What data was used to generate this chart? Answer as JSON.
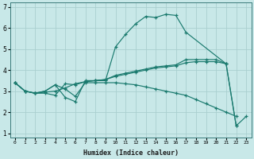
{
  "xlabel": "Humidex (Indice chaleur)",
  "color": "#1a7a6e",
  "bg_color": "#c8e8e8",
  "grid_color": "#aacfcf",
  "ylim": [
    0.8,
    7.2
  ],
  "xlim": [
    -0.5,
    23.5
  ],
  "yticks": [
    1,
    2,
    3,
    4,
    5,
    6,
    7
  ],
  "xticks": [
    0,
    1,
    2,
    3,
    4,
    5,
    6,
    7,
    8,
    9,
    10,
    11,
    12,
    13,
    14,
    15,
    16,
    17,
    18,
    19,
    20,
    21,
    22,
    23
  ],
  "line1_x": [
    0,
    1,
    2,
    3,
    4,
    5,
    6,
    7,
    8,
    9,
    10,
    11,
    12,
    13,
    14,
    15,
    16,
    17,
    21,
    22,
    23
  ],
  "line1_y": [
    3.4,
    3.0,
    2.9,
    3.0,
    3.3,
    2.7,
    2.5,
    3.5,
    3.5,
    3.5,
    5.1,
    5.7,
    6.2,
    6.55,
    6.5,
    6.65,
    6.6,
    5.8,
    4.3,
    1.35,
    1.8
  ],
  "line2_x": [
    0,
    1,
    2,
    3,
    4,
    5,
    6,
    7,
    8,
    9,
    10,
    11,
    12,
    13,
    14,
    15,
    16,
    17,
    18,
    19,
    20,
    21,
    22
  ],
  "line2_y": [
    3.4,
    3.0,
    2.9,
    2.9,
    2.8,
    3.35,
    3.3,
    3.45,
    3.5,
    3.55,
    3.75,
    3.85,
    3.95,
    4.05,
    4.15,
    4.2,
    4.25,
    4.5,
    4.5,
    4.5,
    4.5,
    4.3,
    1.35
  ],
  "line3_x": [
    0,
    1,
    2,
    3,
    4,
    5,
    6,
    7,
    8,
    9,
    10,
    11,
    12,
    13,
    14,
    15,
    16,
    17,
    18,
    19,
    20,
    21
  ],
  "line3_y": [
    3.4,
    3.0,
    2.9,
    2.95,
    3.0,
    3.15,
    3.35,
    3.45,
    3.5,
    3.55,
    3.7,
    3.8,
    3.9,
    4.0,
    4.1,
    4.15,
    4.2,
    4.35,
    4.4,
    4.4,
    4.4,
    4.3
  ],
  "line4_x": [
    0,
    1,
    2,
    3,
    4,
    5,
    6,
    7,
    8,
    9,
    10,
    11,
    12,
    13,
    14,
    15,
    16,
    17,
    18,
    19,
    20,
    21,
    22
  ],
  "line4_y": [
    3.4,
    3.0,
    2.9,
    3.0,
    3.3,
    3.1,
    2.75,
    3.4,
    3.4,
    3.4,
    3.4,
    3.35,
    3.3,
    3.2,
    3.1,
    3.0,
    2.9,
    2.8,
    2.6,
    2.4,
    2.2,
    2.0,
    1.8
  ]
}
